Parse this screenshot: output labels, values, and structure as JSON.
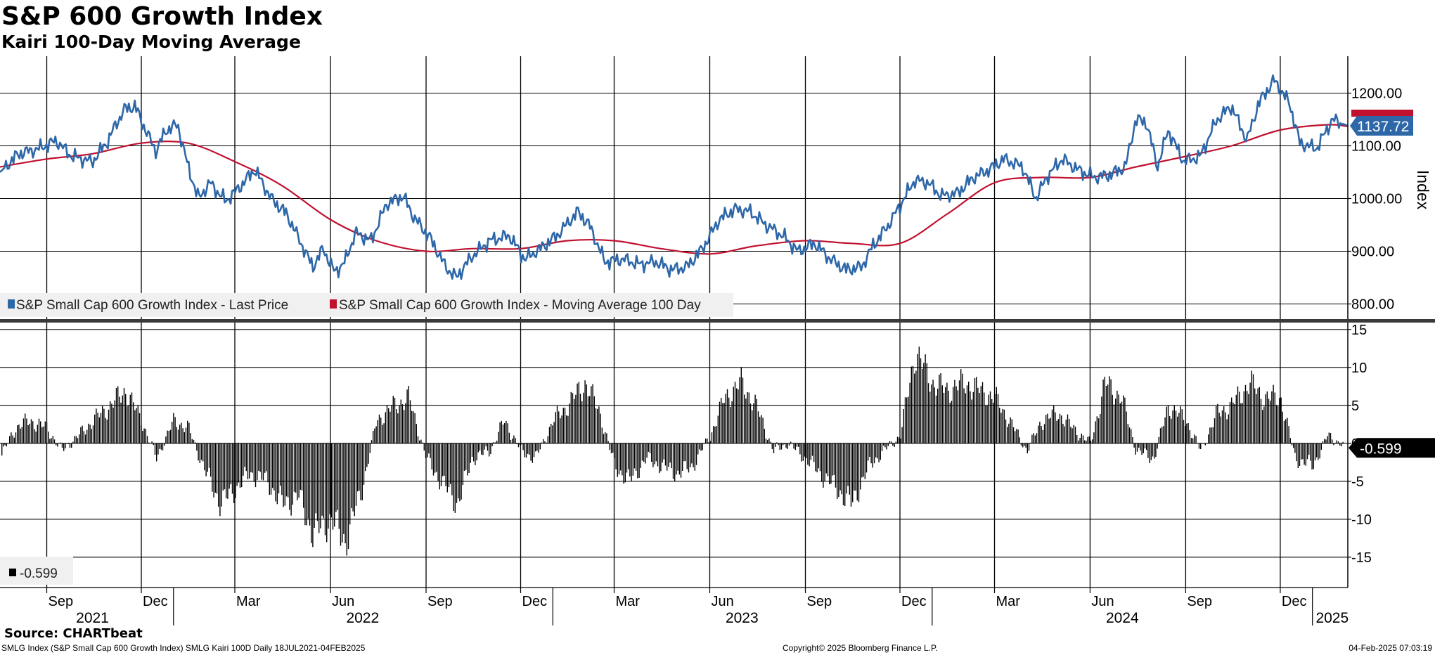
{
  "header": {
    "title": "S&P 600 Growth Index",
    "subtitle": "Kairi 100-Day Moving Average"
  },
  "footer": {
    "source": "Source: CHARTbeat",
    "left": "SMLG Index (S&P Small Cap 600 Growth Index) SMLG Kairi 100D  Daily 18JUL2021-04FEB2025",
    "center": "Copyright© 2025 Bloomberg Finance L.P.",
    "right": "04-Feb-2025 07:03:19"
  },
  "colors": {
    "price": "#2e67a8",
    "moving_average": "#c0112f",
    "kairi_bars": "#000000",
    "grid": "#000000"
  },
  "chart_data": [
    {
      "type": "line",
      "panel": "upper",
      "ylabel": "Index",
      "ylim": [
        770,
        1270
      ],
      "yticks": [
        "800.00",
        "900.00",
        "1000.00",
        "1100.00",
        "1200.00"
      ],
      "ytick_values": [
        800,
        900,
        1000,
        1100,
        1200
      ],
      "x_range": [
        "2021-07-18",
        "2025-02-04"
      ],
      "grid": true,
      "legend": [
        "S&P Small Cap 600 Growth Index - Last Price",
        "S&P Small Cap 600 Growth Index - Moving Average 100 Day"
      ],
      "legend_position": "bottom-left",
      "last_value_label": "1137.72",
      "series": [
        {
          "name": "S&P Small Cap 600 Growth Index - Last Price",
          "x": [
            "2021-07-18",
            "2021-08-05",
            "2021-08-25",
            "2021-09-10",
            "2021-09-25",
            "2021-10-15",
            "2021-10-30",
            "2021-11-05",
            "2021-11-15",
            "2021-11-25",
            "2021-12-05",
            "2021-12-15",
            "2021-12-25",
            "2022-01-05",
            "2022-01-15",
            "2022-01-25",
            "2022-02-05",
            "2022-02-20",
            "2022-03-05",
            "2022-03-20",
            "2022-04-05",
            "2022-04-20",
            "2022-05-05",
            "2022-05-15",
            "2022-05-25",
            "2022-06-05",
            "2022-06-15",
            "2022-06-25",
            "2022-07-10",
            "2022-07-25",
            "2022-08-10",
            "2022-08-20",
            "2022-09-05",
            "2022-09-20",
            "2022-09-30",
            "2022-10-15",
            "2022-11-01",
            "2022-11-20",
            "2022-12-05",
            "2022-12-20",
            "2023-01-05",
            "2023-01-25",
            "2023-02-05",
            "2023-02-20",
            "2023-03-10",
            "2023-03-25",
            "2023-04-10",
            "2023-04-25",
            "2023-05-10",
            "2023-05-25",
            "2023-06-10",
            "2023-06-25",
            "2023-07-10",
            "2023-07-25",
            "2023-08-10",
            "2023-08-25",
            "2023-09-10",
            "2023-09-25",
            "2023-10-10",
            "2023-10-25",
            "2023-11-05",
            "2023-11-20",
            "2023-12-05",
            "2023-12-15",
            "2023-12-28",
            "2024-01-10",
            "2024-01-25",
            "2024-02-10",
            "2024-02-25",
            "2024-03-10",
            "2024-03-28",
            "2024-04-10",
            "2024-04-20",
            "2024-05-05",
            "2024-05-20",
            "2024-06-05",
            "2024-06-20",
            "2024-07-05",
            "2024-07-15",
            "2024-07-25",
            "2024-08-05",
            "2024-08-15",
            "2024-08-30",
            "2024-09-15",
            "2024-10-01",
            "2024-10-15",
            "2024-10-30",
            "2024-11-10",
            "2024-11-25",
            "2024-12-10",
            "2024-12-20",
            "2025-01-05",
            "2025-01-20",
            "2025-02-04"
          ],
          "values": [
            1050,
            1085,
            1095,
            1110,
            1080,
            1070,
            1110,
            1135,
            1170,
            1175,
            1130,
            1090,
            1130,
            1140,
            1060,
            1000,
            1030,
            995,
            1020,
            1055,
            1000,
            970,
            910,
            870,
            905,
            860,
            880,
            935,
            920,
            990,
            1005,
            965,
            925,
            870,
            850,
            890,
            920,
            930,
            885,
            905,
            930,
            975,
            950,
            880,
            885,
            875,
            880,
            865,
            870,
            905,
            960,
            980,
            975,
            950,
            930,
            900,
            915,
            885,
            865,
            870,
            910,
            950,
            1000,
            1035,
            1030,
            1005,
            1010,
            1040,
            1055,
            1075,
            1060,
            1000,
            1040,
            1075,
            1055,
            1040,
            1045,
            1060,
            1150,
            1145,
            1060,
            1130,
            1070,
            1080,
            1150,
            1175,
            1110,
            1180,
            1225,
            1180,
            1105,
            1095,
            1150,
            1138
          ]
        },
        {
          "name": "S&P Small Cap 600 Growth Index - Moving Average 100 Day",
          "x": [
            "2021-07-18",
            "2021-09-01",
            "2021-10-15",
            "2021-12-01",
            "2022-01-15",
            "2022-03-01",
            "2022-04-15",
            "2022-06-01",
            "2022-07-15",
            "2022-09-01",
            "2022-10-15",
            "2022-12-01",
            "2023-01-15",
            "2023-03-01",
            "2023-04-15",
            "2023-06-01",
            "2023-07-15",
            "2023-09-01",
            "2023-10-15",
            "2023-12-01",
            "2024-01-15",
            "2024-03-01",
            "2024-04-15",
            "2024-06-01",
            "2024-07-15",
            "2024-09-01",
            "2024-10-15",
            "2024-12-01",
            "2025-01-15",
            "2025-02-04"
          ],
          "values": [
            1060,
            1075,
            1085,
            1105,
            1105,
            1070,
            1025,
            960,
            920,
            900,
            905,
            905,
            920,
            920,
            905,
            895,
            910,
            920,
            915,
            915,
            970,
            1030,
            1040,
            1040,
            1060,
            1080,
            1100,
            1130,
            1140,
            1137
          ]
        }
      ]
    },
    {
      "type": "bar",
      "panel": "lower",
      "ylim": [
        -19,
        16
      ],
      "yticks": [
        "-15",
        "-10",
        "-5",
        "0",
        "5",
        "10",
        "15"
      ],
      "ytick_values": [
        -15,
        -10,
        -5,
        0,
        5,
        10,
        15
      ],
      "grid": true,
      "legend": [
        "-0.599"
      ],
      "legend_position": "bottom-left",
      "last_value_label": "-0.599",
      "x_axis": {
        "months": [
          {
            "label": "Sep",
            "date": "2021-09-01"
          },
          {
            "label": "Dec",
            "date": "2021-12-01"
          },
          {
            "label": "Mar",
            "date": "2022-03-01"
          },
          {
            "label": "Jun",
            "date": "2022-06-01"
          },
          {
            "label": "Sep",
            "date": "2022-09-01"
          },
          {
            "label": "Dec",
            "date": "2022-12-01"
          },
          {
            "label": "Mar",
            "date": "2023-03-01"
          },
          {
            "label": "Jun",
            "date": "2023-06-01"
          },
          {
            "label": "Sep",
            "date": "2023-09-01"
          },
          {
            "label": "Dec",
            "date": "2023-12-01"
          },
          {
            "label": "Mar",
            "date": "2024-03-01"
          },
          {
            "label": "Jun",
            "date": "2024-06-01"
          },
          {
            "label": "Sep",
            "date": "2024-09-01"
          },
          {
            "label": "Dec",
            "date": "2024-12-01"
          }
        ],
        "years": [
          {
            "label": "2021",
            "date": "2021-10-15"
          },
          {
            "label": "2022",
            "date": "2022-07-02"
          },
          {
            "label": "2023",
            "date": "2023-07-02"
          },
          {
            "label": "2024",
            "date": "2024-07-02"
          },
          {
            "label": "2025",
            "date": "2025-01-20"
          }
        ],
        "year_boundaries": [
          "2022-01-01",
          "2023-01-01",
          "2024-01-01",
          "2025-01-01"
        ]
      },
      "series": [
        {
          "name": "",
          "x": [
            "2021-07-18",
            "2021-08-01",
            "2021-08-15",
            "2021-09-01",
            "2021-09-15",
            "2021-10-01",
            "2021-10-15",
            "2021-11-01",
            "2021-11-15",
            "2021-12-01",
            "2021-12-15",
            "2022-01-01",
            "2022-01-15",
            "2022-02-01",
            "2022-02-15",
            "2022-03-01",
            "2022-03-15",
            "2022-04-01",
            "2022-04-15",
            "2022-05-01",
            "2022-05-15",
            "2022-06-01",
            "2022-06-15",
            "2022-07-01",
            "2022-07-15",
            "2022-08-01",
            "2022-08-15",
            "2022-09-01",
            "2022-09-15",
            "2022-10-01",
            "2022-10-15",
            "2022-11-01",
            "2022-11-15",
            "2022-12-01",
            "2022-12-15",
            "2023-01-01",
            "2023-01-15",
            "2023-02-01",
            "2023-02-15",
            "2023-03-01",
            "2023-03-15",
            "2023-04-01",
            "2023-04-15",
            "2023-05-01",
            "2023-05-15",
            "2023-06-01",
            "2023-06-15",
            "2023-07-01",
            "2023-07-15",
            "2023-08-01",
            "2023-08-15",
            "2023-09-01",
            "2023-09-15",
            "2023-10-01",
            "2023-10-15",
            "2023-11-01",
            "2023-11-15",
            "2023-12-01",
            "2023-12-15",
            "2024-01-01",
            "2024-01-15",
            "2024-02-01",
            "2024-02-15",
            "2024-03-01",
            "2024-03-15",
            "2024-04-01",
            "2024-04-15",
            "2024-05-01",
            "2024-05-15",
            "2024-06-01",
            "2024-06-15",
            "2024-07-01",
            "2024-07-15",
            "2024-08-01",
            "2024-08-15",
            "2024-09-01",
            "2024-09-15",
            "2024-10-01",
            "2024-10-15",
            "2024-11-01",
            "2024-11-15",
            "2024-12-01",
            "2024-12-15",
            "2025-01-01",
            "2025-01-15",
            "2025-02-04"
          ],
          "values": [
            -2,
            2,
            3,
            2,
            -1,
            1,
            3,
            5,
            7,
            3,
            -2,
            3,
            2,
            -4,
            -8,
            -6,
            -4,
            -5,
            -8,
            -7,
            -12,
            -10,
            -13,
            -6,
            3,
            5,
            6,
            -2,
            -5,
            -8,
            -2,
            -1,
            3,
            -1,
            -2,
            3,
            5,
            8,
            4,
            -3,
            -5,
            -2,
            -3,
            -4,
            -3,
            1,
            6,
            8,
            5,
            -1,
            0,
            -2,
            -4,
            -6,
            -8,
            -3,
            -1,
            1,
            12,
            8,
            7,
            8,
            7,
            6,
            3,
            -1,
            3,
            4,
            2,
            0,
            8,
            6,
            -1,
            -2,
            5,
            3,
            -1,
            4,
            5,
            8,
            6,
            6,
            -2,
            -3,
            1,
            -0.599
          ]
        }
      ]
    }
  ]
}
